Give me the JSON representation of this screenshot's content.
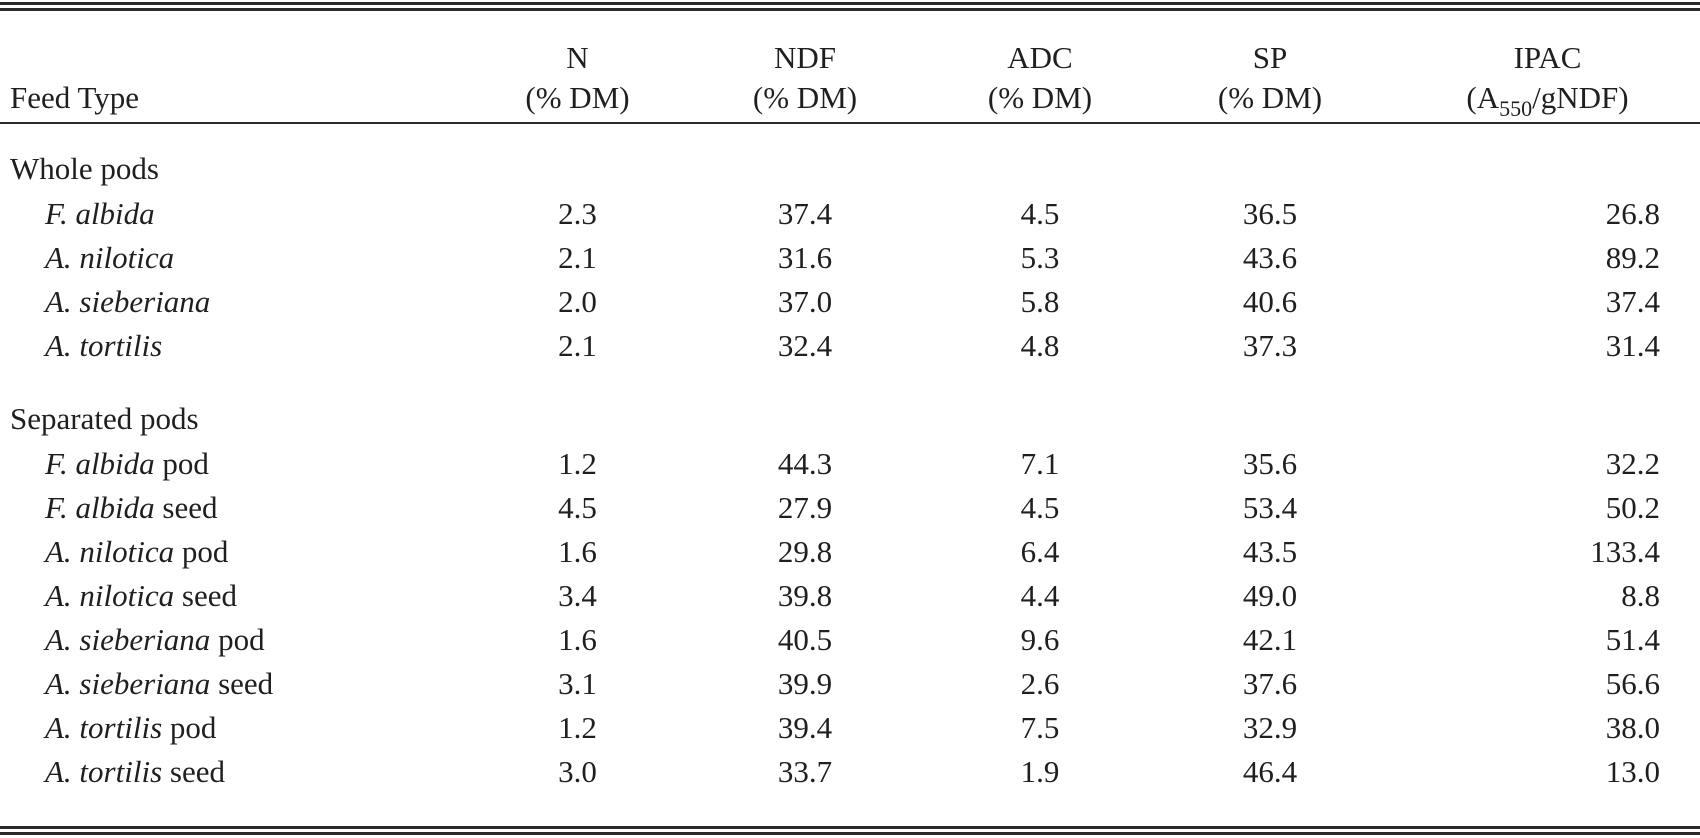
{
  "table": {
    "headers": {
      "feed_type": "Feed Type",
      "n": [
        "N",
        "(% DM)"
      ],
      "ndf": [
        "NDF",
        "(% DM)"
      ],
      "adc": [
        "ADC",
        "(% DM)"
      ],
      "sp": [
        "SP",
        "(% DM)"
      ],
      "ipac": {
        "line1": "IPAC",
        "line2_pre": "(A",
        "line2_sub": "550",
        "line2_post": "/gNDF)"
      }
    },
    "groups": [
      {
        "label": "Whole pods",
        "rows": [
          {
            "species": "F. albida",
            "part": "",
            "n": "2.3",
            "ndf": "37.4",
            "adc": "4.5",
            "sp": "36.5",
            "ipac": "26.8"
          },
          {
            "species": "A. nilotica",
            "part": "",
            "n": "2.1",
            "ndf": "31.6",
            "adc": "5.3",
            "sp": "43.6",
            "ipac": "89.2"
          },
          {
            "species": "A. sieberiana",
            "part": "",
            "n": "2.0",
            "ndf": "37.0",
            "adc": "5.8",
            "sp": "40.6",
            "ipac": "37.4"
          },
          {
            "species": "A. tortilis",
            "part": "",
            "n": "2.1",
            "ndf": "32.4",
            "adc": "4.8",
            "sp": "37.3",
            "ipac": "31.4"
          }
        ]
      },
      {
        "label": "Separated pods",
        "rows": [
          {
            "species": "F. albida",
            "part": " pod",
            "n": "1.2",
            "ndf": "44.3",
            "adc": "7.1",
            "sp": "35.6",
            "ipac": "32.2"
          },
          {
            "species": "F. albida",
            "part": " seed",
            "n": "4.5",
            "ndf": "27.9",
            "adc": "4.5",
            "sp": "53.4",
            "ipac": "50.2"
          },
          {
            "species": "A. nilotica",
            "part": " pod",
            "n": "1.6",
            "ndf": "29.8",
            "adc": "6.4",
            "sp": "43.5",
            "ipac": "133.4"
          },
          {
            "species": "A. nilotica",
            "part": " seed",
            "n": "3.4",
            "ndf": "39.8",
            "adc": "4.4",
            "sp": "49.0",
            "ipac": "8.8"
          },
          {
            "species": "A. sieberiana",
            "part": " pod",
            "n": "1.6",
            "ndf": "40.5",
            "adc": "9.6",
            "sp": "42.1",
            "ipac": "51.4"
          },
          {
            "species": "A. sieberiana",
            "part": " seed",
            "n": "3.1",
            "ndf": "39.9",
            "adc": "2.6",
            "sp": "37.6",
            "ipac": "56.6"
          },
          {
            "species": "A. tortilis",
            "part": " pod",
            "n": "1.2",
            "ndf": "39.4",
            "adc": "7.5",
            "sp": "32.9",
            "ipac": "38.0"
          },
          {
            "species": "A. tortilis",
            "part": " seed",
            "n": "3.0",
            "ndf": "33.7",
            "adc": "1.9",
            "sp": "46.4",
            "ipac": "13.0"
          }
        ]
      }
    ]
  }
}
